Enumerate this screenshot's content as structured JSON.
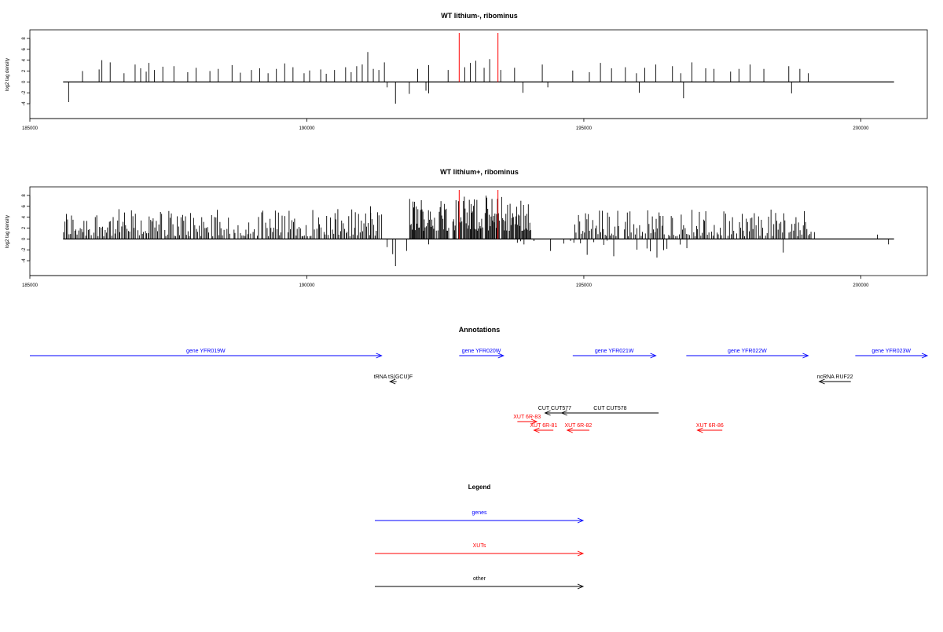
{
  "chart_data": [
    {
      "type": "bar",
      "title": "WT lithium-, ribominus",
      "ylabel": "log2 tag density",
      "xlabel": "",
      "xlim": [
        185000,
        201200
      ],
      "ylim": [
        -5,
        9
      ],
      "xticks": [
        185000,
        190000,
        195000,
        200000
      ],
      "yticks": [
        -4,
        -2,
        0,
        2,
        4,
        6,
        8
      ],
      "baseline_span": [
        185600,
        200600
      ],
      "marker_lines": [
        192750,
        193450
      ],
      "marker_color": "#ff0000",
      "positive": [
        [
          185950,
          2
        ],
        [
          186250,
          2.3
        ],
        [
          186300,
          4
        ],
        [
          186450,
          3.6
        ],
        [
          186700,
          1.6
        ],
        [
          186900,
          3.2
        ],
        [
          187000,
          2.5
        ],
        [
          187100,
          1.9
        ],
        [
          187150,
          3.5
        ],
        [
          187250,
          2.2
        ],
        [
          187400,
          2.8
        ],
        [
          187600,
          2.9
        ],
        [
          187850,
          1.8
        ],
        [
          188000,
          2.6
        ],
        [
          188250,
          2
        ],
        [
          188400,
          2.4
        ],
        [
          188650,
          3.1
        ],
        [
          188800,
          1.7
        ],
        [
          189000,
          2.2
        ],
        [
          189150,
          2.5
        ],
        [
          189300,
          1.6
        ],
        [
          189450,
          2.4
        ],
        [
          189600,
          3.4
        ],
        [
          189750,
          2.7
        ],
        [
          189950,
          1.6
        ],
        [
          190050,
          2.1
        ],
        [
          190250,
          2.3
        ],
        [
          190350,
          1.5
        ],
        [
          190500,
          2.2
        ],
        [
          190700,
          2.7
        ],
        [
          190800,
          1.8
        ],
        [
          190900,
          2.9
        ],
        [
          191000,
          3.2
        ],
        [
          191100,
          5.5
        ],
        [
          191200,
          2.4
        ],
        [
          191300,
          2.2
        ],
        [
          191400,
          3.6
        ],
        [
          192000,
          2.4
        ],
        [
          192200,
          3.1
        ],
        [
          192550,
          2.2
        ],
        [
          192850,
          2.7
        ],
        [
          192950,
          3.5
        ],
        [
          193050,
          3.9
        ],
        [
          193200,
          2.6
        ],
        [
          193300,
          4.2
        ],
        [
          193500,
          2.2
        ],
        [
          193750,
          2.6
        ],
        [
          194250,
          3.2
        ],
        [
          194800,
          2.1
        ],
        [
          195100,
          1.8
        ],
        [
          195300,
          3.5
        ],
        [
          195500,
          2.5
        ],
        [
          195750,
          2.7
        ],
        [
          195950,
          1.6
        ],
        [
          196100,
          2.6
        ],
        [
          196300,
          3.2
        ],
        [
          196600,
          2.9
        ],
        [
          196750,
          1.6
        ],
        [
          196950,
          3.6
        ],
        [
          197200,
          2.5
        ],
        [
          197350,
          2.4
        ],
        [
          197650,
          1.9
        ],
        [
          197800,
          2.4
        ],
        [
          198000,
          3.2
        ],
        [
          198250,
          2.4
        ],
        [
          198700,
          2.9
        ],
        [
          198900,
          2.4
        ],
        [
          199050,
          1.6
        ]
      ],
      "negative": [
        [
          185700,
          -3.7
        ],
        [
          191450,
          -1
        ],
        [
          191600,
          -4
        ],
        [
          191850,
          -2.2
        ],
        [
          192150,
          -1.6
        ],
        [
          192200,
          -2.1
        ],
        [
          193900,
          -2
        ],
        [
          194350,
          -1
        ],
        [
          196000,
          -2
        ],
        [
          196800,
          -3
        ],
        [
          198750,
          -2.1
        ]
      ]
    },
    {
      "type": "bar",
      "title": "WT lithium+, ribominus",
      "ylabel": "log2 tag density",
      "xlabel": "",
      "xlim": [
        185000,
        201200
      ],
      "ylim": [
        -5,
        9
      ],
      "xticks": [
        185000,
        190000,
        195000,
        200000
      ],
      "yticks": [
        -4,
        -2,
        0,
        2,
        4,
        6,
        8
      ],
      "baseline_span": [
        185600,
        200600
      ],
      "marker_lines": [
        192750,
        193450
      ],
      "marker_color": "#ff0000",
      "dense_positive_regions": [
        {
          "from": 185600,
          "to": 191300,
          "step": 25,
          "min": 0.5,
          "max": 5.5
        },
        {
          "from": 191850,
          "to": 194050,
          "step": 15,
          "min": 1.5,
          "max": 8
        },
        {
          "from": 194800,
          "to": 199150,
          "step": 25,
          "min": 0.5,
          "max": 5.5
        }
      ],
      "dense_negative_regions": [
        {
          "from": 193800,
          "to": 196900,
          "step": 60,
          "min": 0.3,
          "max": 3.5
        }
      ],
      "positive": [
        [
          191150,
          6
        ],
        [
          191350,
          4.5
        ],
        [
          200300,
          0.8
        ]
      ],
      "negative": [
        [
          191450,
          -1.5
        ],
        [
          191550,
          -2.8
        ],
        [
          191600,
          -5
        ],
        [
          191800,
          -2.2
        ],
        [
          192200,
          -1
        ],
        [
          198600,
          -2.5
        ],
        [
          200500,
          -1
        ]
      ]
    }
  ],
  "annotations": {
    "title": "Annotations",
    "features": [
      {
        "label": "gene YFR019W",
        "x1": 185000,
        "x2": 191350,
        "dir": "right",
        "row": 0,
        "color": "#0000ff"
      },
      {
        "label": "gene YFR020W",
        "x1": 192750,
        "x2": 193550,
        "dir": "right",
        "row": 0,
        "color": "#0000ff"
      },
      {
        "label": "gene YFR021W",
        "x1": 194800,
        "x2": 196300,
        "dir": "right",
        "row": 0,
        "color": "#0000ff"
      },
      {
        "label": "gene YFR022W",
        "x1": 196850,
        "x2": 199050,
        "dir": "right",
        "row": 0,
        "color": "#0000ff"
      },
      {
        "label": "gene YFR023W",
        "x1": 199900,
        "x2": 201300,
        "dir": "right",
        "row": 0,
        "color": "#0000ff"
      },
      {
        "label": "tRNA tS(GCU)F",
        "x1": 191500,
        "x2": 191620,
        "dir": "left",
        "row": 1,
        "color": "#000000"
      },
      {
        "label": "ncRNA RUF22",
        "x1": 199250,
        "x2": 199820,
        "dir": "left",
        "row": 1,
        "color": "#000000"
      },
      {
        "label": "CUT CUT577",
        "x1": 194300,
        "x2": 194650,
        "dir": "left",
        "row": 2,
        "color": "#000000"
      },
      {
        "label": "CUT CUT578",
        "x1": 194600,
        "x2": 196350,
        "dir": "left",
        "row": 2,
        "color": "#000000"
      },
      {
        "label": "XUT 6R-83",
        "x1": 193800,
        "x2": 194150,
        "dir": "right",
        "row": 3,
        "color": "#ff0000"
      },
      {
        "label": "XUT 6R-81",
        "x1": 194100,
        "x2": 194450,
        "dir": "left",
        "row": 4,
        "color": "#ff0000"
      },
      {
        "label": "XUT 6R-82",
        "x1": 194700,
        "x2": 195100,
        "dir": "left",
        "row": 4,
        "color": "#ff0000"
      },
      {
        "label": "XUT 6R-86",
        "x1": 197050,
        "x2": 197500,
        "dir": "left",
        "row": 4,
        "color": "#ff0000"
      }
    ]
  },
  "legend": {
    "title": "Legend",
    "items": [
      {
        "label": "genes",
        "color": "#0000ff"
      },
      {
        "label": "XUTs",
        "color": "#ff0000"
      },
      {
        "label": "other",
        "color": "#000000"
      }
    ]
  }
}
